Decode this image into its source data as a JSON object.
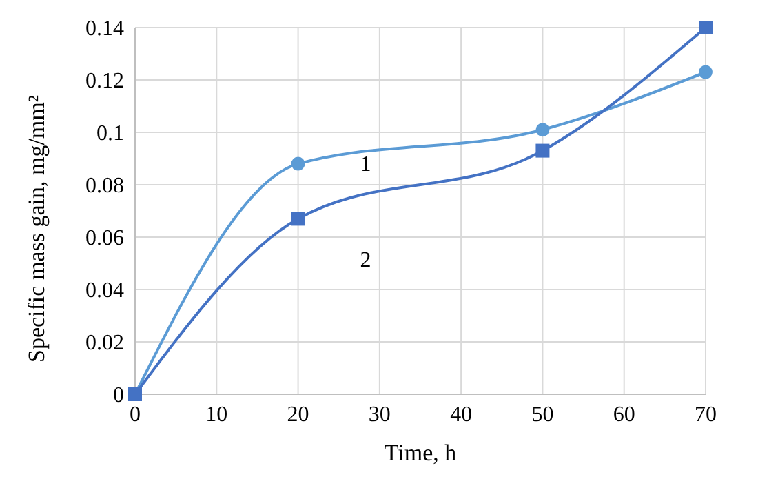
{
  "chart_data": {
    "type": "line",
    "xlabel": "Time, h",
    "ylabel": "Specific  mass gain, mg/mm²",
    "x": [
      0,
      20,
      50,
      70
    ],
    "series": [
      {
        "name": "1",
        "color": "#5b9bd5",
        "values": [
          0,
          0.088,
          0.101,
          0.123
        ],
        "marker": "circle"
      },
      {
        "name": "2",
        "color": "#4472c4",
        "values": [
          0,
          0.067,
          0.093,
          0.14
        ],
        "marker": "square"
      }
    ],
    "xlim": [
      0,
      70
    ],
    "xticks": [
      0,
      10,
      20,
      30,
      40,
      50,
      60,
      70
    ],
    "ylim": [
      0,
      0.14
    ],
    "yticks": [
      0,
      0.02,
      0.04,
      0.06,
      0.08,
      0.1,
      0.12,
      0.14
    ],
    "grid": true,
    "line_style": "solid"
  }
}
